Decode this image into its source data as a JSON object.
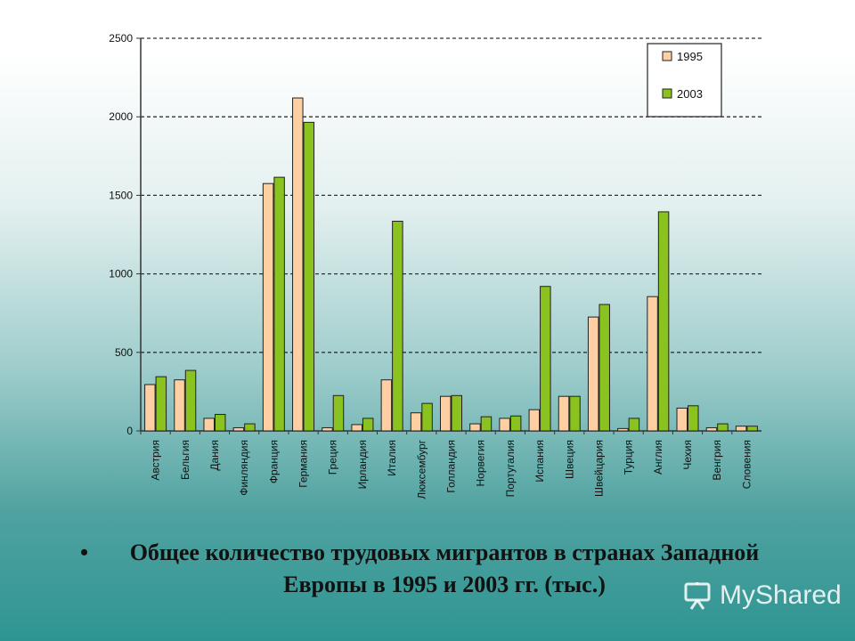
{
  "chart_data": {
    "type": "bar",
    "categories": [
      "Австрия",
      "Бельгия",
      "Дания",
      "Финляндия",
      "Франция",
      "Германия",
      "Греция",
      "Ирландия",
      "Италия",
      "Люксембург",
      "Голландия",
      "Норвегия",
      "Португалия",
      "Испания",
      "Швеция",
      "Швейцария",
      "Турция",
      "Англия",
      "Чехия",
      "Венгрия",
      "Словения"
    ],
    "series": [
      {
        "name": "1995",
        "color": "#fdcfa3",
        "values": [
          295,
          325,
          80,
          20,
          1575,
          2120,
          20,
          40,
          325,
          115,
          220,
          45,
          80,
          135,
          220,
          725,
          15,
          855,
          145,
          20,
          30
        ]
      },
      {
        "name": "2003",
        "color": "#8ac21f",
        "values": [
          345,
          385,
          105,
          45,
          1615,
          1965,
          225,
          80,
          1335,
          175,
          225,
          90,
          95,
          920,
          220,
          805,
          80,
          1395,
          160,
          45,
          30
        ]
      }
    ],
    "y_ticks": [
      "0",
      "500",
      "1000",
      "1500",
      "2000",
      "2500"
    ],
    "ylim": [
      0,
      2500
    ],
    "grid": "horizontal-dashed",
    "legend_position": "top-right"
  },
  "caption": {
    "bullet": "•",
    "text": "Общее количество трудовых мигрантов в странах Западной Европы в 1995 и 2003 гг. (тыс.)"
  },
  "watermark": {
    "text": "MyShared",
    "icon": "presentation-board-icon"
  }
}
